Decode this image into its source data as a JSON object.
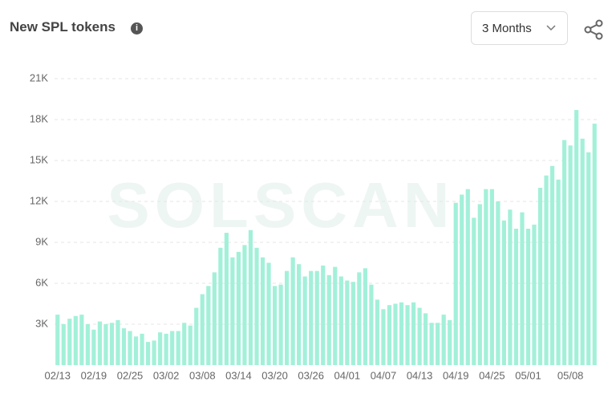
{
  "header": {
    "title": "New SPL tokens",
    "range": "3 Months"
  },
  "watermark": "SOLSCAN",
  "chart_data": {
    "type": "bar",
    "color": "#a3f0d9",
    "grid": true,
    "categories": [
      "02/13",
      null,
      null,
      null,
      null,
      null,
      "02/19",
      null,
      null,
      null,
      null,
      null,
      "02/25",
      null,
      null,
      null,
      null,
      null,
      "03/02",
      null,
      null,
      null,
      null,
      null,
      "03/08",
      null,
      null,
      null,
      null,
      null,
      "03/14",
      null,
      null,
      null,
      null,
      null,
      "03/20",
      null,
      null,
      null,
      null,
      null,
      "03/26",
      null,
      null,
      null,
      null,
      null,
      "04/01",
      null,
      null,
      null,
      null,
      null,
      "04/07",
      null,
      null,
      null,
      null,
      null,
      "04/13",
      null,
      null,
      null,
      null,
      null,
      "04/19",
      null,
      null,
      null,
      null,
      null,
      "04/25",
      null,
      null,
      null,
      null,
      null,
      "05/01",
      null,
      null,
      null,
      null,
      null,
      null,
      "05/08",
      null,
      null,
      null,
      null
    ],
    "values": [
      3700,
      3000,
      3400,
      3600,
      3700,
      3000,
      2600,
      3200,
      3000,
      3100,
      3300,
      2700,
      2500,
      2100,
      2300,
      1700,
      1800,
      2400,
      2300,
      2500,
      2500,
      3100,
      2900,
      4200,
      5200,
      5800,
      6800,
      8600,
      9700,
      7900,
      8300,
      8800,
      9900,
      8600,
      7900,
      7500,
      5800,
      5900,
      6900,
      7900,
      7400,
      6500,
      6900,
      6900,
      7300,
      6600,
      7200,
      6500,
      6200,
      6100,
      6800,
      7100,
      5900,
      4800,
      4100,
      4400,
      4500,
      4600,
      4400,
      4600,
      4200,
      3800,
      3100,
      3100,
      3700,
      3300,
      11900,
      12500,
      12900,
      10800,
      11800,
      12900,
      12900,
      12000,
      10600,
      11400,
      10000,
      11200,
      10000,
      10300,
      13000,
      13900,
      14600,
      13600,
      16500,
      16100,
      18700,
      16600,
      15600,
      17700
    ],
    "ylim": [
      0,
      21000
    ],
    "yticks": [
      {
        "value": 3000,
        "label": "3K"
      },
      {
        "value": 6000,
        "label": "6K"
      },
      {
        "value": 9000,
        "label": "9K"
      },
      {
        "value": 12000,
        "label": "12K"
      },
      {
        "value": 15000,
        "label": "15K"
      },
      {
        "value": 18000,
        "label": "18K"
      },
      {
        "value": 21000,
        "label": "21K"
      }
    ]
  }
}
